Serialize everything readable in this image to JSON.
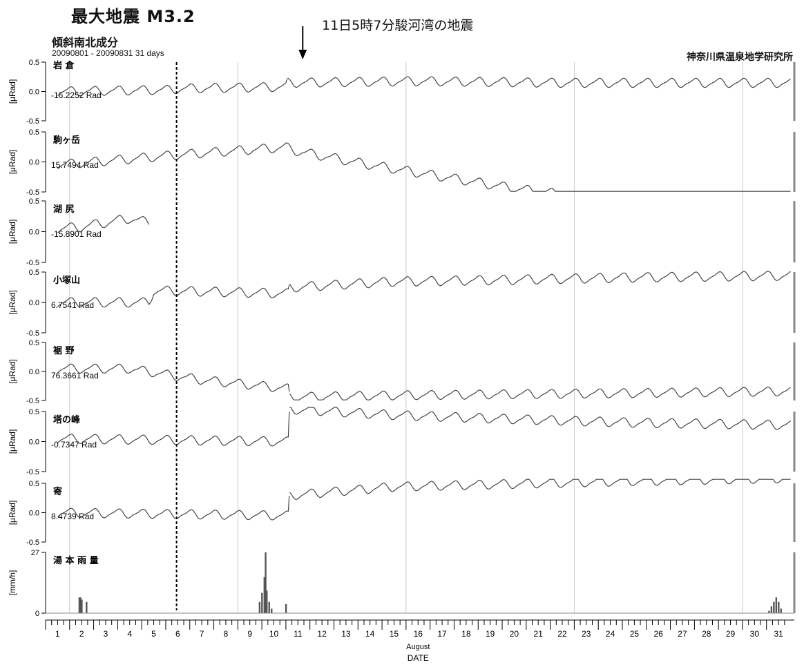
{
  "header": {
    "max_quake": "最大地震 M3.2",
    "component": "傾斜南北成分",
    "period": "20090801 - 20090831 31 days",
    "institute": "神奈川県温泉地学研究所",
    "event_label": "11日5時7分駿河湾の地震"
  },
  "chart_data": [
    {
      "type": "line",
      "station": "岩 倉",
      "offset_label": "-16.2252 Rad",
      "ylabel": "[μRad]",
      "ylim": [
        -0.5,
        0.5
      ],
      "yticks": [
        "0.5",
        "0.0",
        "-0.5"
      ],
      "x_days": [
        1,
        5.8,
        6,
        10.5,
        10.55,
        16,
        22,
        31.5
      ],
      "trend": [
        0.0,
        0.03,
        0.05,
        0.08,
        0.15,
        0.18,
        0.15,
        0.15
      ],
      "dropped_station": "駒ヶ岳"
    },
    {
      "type": "line",
      "station": "駒ヶ岳",
      "offset_label": "15.7494 Rad",
      "ylabel": "[μRad]",
      "ylim": [
        -0.5,
        0.5
      ],
      "yticks": [
        "0.5",
        "0.0",
        "-0.5"
      ],
      "x_days": [
        1,
        4,
        6,
        10.5,
        11,
        14,
        17,
        20,
        23,
        26,
        29,
        31.5
      ],
      "trend": [
        -0.05,
        0.05,
        0.12,
        0.25,
        0.18,
        -0.05,
        -0.25,
        -0.45,
        -0.6,
        -0.68,
        -0.72,
        -0.75
      ]
    },
    {
      "type": "line",
      "station": "湖 尻",
      "offset_label": "-15.8901 Rad",
      "ylabel": "[μRad]",
      "ylim": [
        -0.5,
        0.5
      ],
      "yticks": [
        "0.5",
        "0.0",
        "-0.5"
      ],
      "x_days": [
        1,
        2,
        3,
        4,
        4.8
      ],
      "trend": [
        0.05,
        0.08,
        0.15,
        0.22,
        0.15
      ]
    },
    {
      "type": "line",
      "station": "小塚山",
      "offset_label": "6.7541 Rad",
      "ylabel": "[μRad]",
      "ylim": [
        -0.5,
        0.5
      ],
      "yticks": [
        "0.5",
        "0.0",
        "-0.5"
      ],
      "x_days": [
        1,
        4.8,
        5,
        10.6,
        10.65,
        15,
        20,
        25,
        31.5
      ],
      "trend": [
        0.0,
        0.0,
        0.2,
        0.15,
        0.25,
        0.35,
        0.38,
        0.42,
        0.45
      ]
    },
    {
      "type": "line",
      "station": "裾 野",
      "offset_label": "76.3661 Rad",
      "ylabel": "[μRad]",
      "ylim": [
        -0.5,
        0.5
      ],
      "yticks": [
        "0.5",
        "0.0",
        "-0.5"
      ],
      "x_days": [
        1,
        4,
        7,
        10.6,
        10.65,
        15,
        20,
        25,
        31.5
      ],
      "trend": [
        0.05,
        0.05,
        -0.15,
        -0.3,
        -0.45,
        -0.42,
        -0.4,
        -0.38,
        -0.35
      ]
    },
    {
      "type": "line",
      "station": "塔の峰",
      "offset_label": "-0.7347 Rad",
      "ylabel": "[μRad]",
      "ylim": [
        -0.5,
        0.5
      ],
      "yticks": [
        "0.5",
        "0.0",
        "-0.5"
      ],
      "x_days": [
        1,
        10.6,
        10.65,
        15,
        20,
        25,
        31.5
      ],
      "trend": [
        0.05,
        0.0,
        0.55,
        0.45,
        0.38,
        0.32,
        0.28
      ]
    },
    {
      "type": "line",
      "station": "寄",
      "offset_label": "8.4739 Rad",
      "ylabel": "[μRad]",
      "ylim": [
        -0.5,
        0.5
      ],
      "yticks": [
        "0.5",
        "0.0",
        "-0.5"
      ],
      "x_days": [
        1,
        10.6,
        10.65,
        15,
        20,
        25,
        31.5
      ],
      "trend": [
        0.0,
        -0.05,
        0.3,
        0.45,
        0.5,
        0.55,
        0.6
      ]
    },
    {
      "type": "bar",
      "station": "湯 本 雨 量",
      "ylabel": "[mm/h]",
      "ylim": [
        0,
        27
      ],
      "yticks": [
        "27",
        "0"
      ],
      "x_days": [
        1.9,
        1.95,
        2.0,
        2.2,
        9.4,
        9.5,
        9.6,
        9.65,
        9.7,
        9.8,
        9.9,
        10.5,
        30.6,
        30.7,
        30.8,
        30.9,
        31.0,
        31.1
      ],
      "values": [
        7,
        7,
        6,
        5,
        5,
        9,
        16,
        27,
        10,
        5,
        2,
        4,
        1,
        3,
        5,
        7,
        5,
        2
      ]
    }
  ],
  "x_axis": {
    "ticks": [
      "1",
      "2",
      "3",
      "4",
      "5",
      "6",
      "7",
      "8",
      "9",
      "10",
      "11",
      "12",
      "13",
      "14",
      "15",
      "16",
      "17",
      "18",
      "19",
      "20",
      "21",
      "22",
      "23",
      "24",
      "25",
      "26",
      "27",
      "28",
      "29",
      "30",
      "31"
    ],
    "month": "August",
    "label": "DATE",
    "xlim": [
      0.5,
      31.6
    ]
  },
  "annotations": {
    "dashed_marker_day": 5.95,
    "quake_arrow_day": 11.2,
    "week_lines": [
      1.5,
      8.5,
      15.5,
      22.5,
      29.5
    ]
  }
}
